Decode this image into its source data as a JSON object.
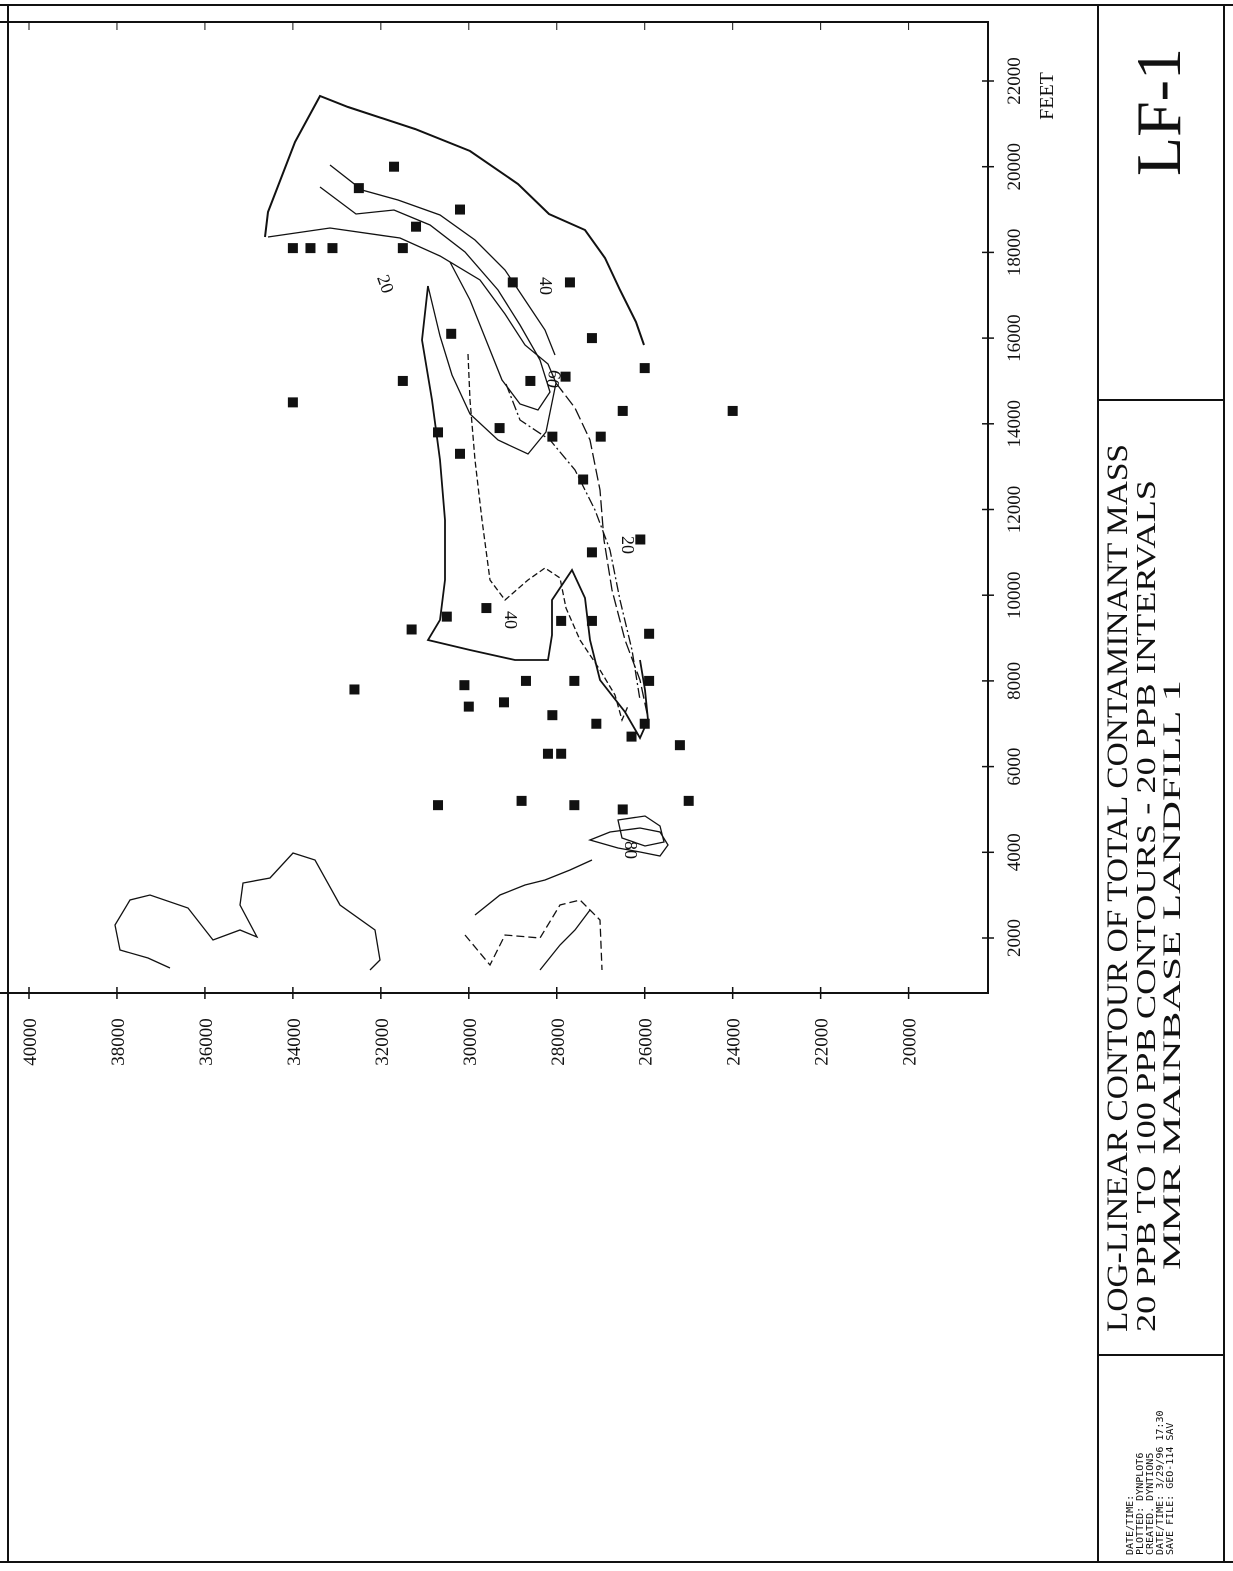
{
  "title_block": {
    "sheet_id": "LF-1",
    "title_line1": "LOG-LINEAR CONTOUR OF TOTAL CONTAMINANT MASS",
    "title_line2": "20 PPB TO 100 PPB CONTOURS - 20 PPB INTERVALS",
    "title_line3": "MMR MAINBASE LANDFILL 1",
    "plot_info": [
      "DATE/TIME:",
      "PLOTTED:   DYNPLOT6",
      "CREATED.   DYNTION5",
      "DATE/TIME:  3/29/96  17:30",
      "SAVE FILE:  GEO-114 SAV"
    ]
  },
  "axes": {
    "easting_label": "FEET",
    "easting_ticks": [
      "2000",
      "4000",
      "6000",
      "8000",
      "10000",
      "12000",
      "14000",
      "16000",
      "18000",
      "20000",
      "22000"
    ],
    "northing_ticks": [
      "40000",
      "38000",
      "36000",
      "34000",
      "32000",
      "30000",
      "28000",
      "26000",
      "24000",
      "22000",
      "20000"
    ]
  },
  "contour_labels": [
    "20",
    "40",
    "60",
    "40",
    "20",
    "80"
  ],
  "wells": [
    [
      5100,
      30700
    ],
    [
      5200,
      28800
    ],
    [
      5100,
      27600
    ],
    [
      5000,
      26500
    ],
    [
      5200,
      25000
    ],
    [
      6300,
      28200
    ],
    [
      6300,
      27900
    ],
    [
      6500,
      25200
    ],
    [
      6700,
      26300
    ],
    [
      7400,
      30000
    ],
    [
      7500,
      29200
    ],
    [
      7200,
      28100
    ],
    [
      7000,
      27100
    ],
    [
      7000,
      26000
    ],
    [
      7800,
      32600
    ],
    [
      7900,
      30100
    ],
    [
      8000,
      28700
    ],
    [
      8000,
      27600
    ],
    [
      8000,
      25900
    ],
    [
      9200,
      31300
    ],
    [
      9500,
      30500
    ],
    [
      9700,
      29600
    ],
    [
      9400,
      27900
    ],
    [
      9400,
      27200
    ],
    [
      9100,
      25900
    ],
    [
      11000,
      27200
    ],
    [
      11300,
      26100
    ],
    [
      12700,
      27400
    ],
    [
      13300,
      30200
    ],
    [
      13800,
      30700
    ],
    [
      13900,
      29300
    ],
    [
      13700,
      28100
    ],
    [
      13700,
      27000
    ],
    [
      14300,
      26500
    ],
    [
      14500,
      34000
    ],
    [
      14300,
      24000
    ],
    [
      15000,
      31500
    ],
    [
      15000,
      28600
    ],
    [
      15100,
      27800
    ],
    [
      15300,
      26000
    ],
    [
      16100,
      30400
    ],
    [
      16000,
      27200
    ],
    [
      17300,
      29000
    ],
    [
      17300,
      27700
    ],
    [
      18100,
      34000
    ],
    [
      18100,
      33600
    ],
    [
      18100,
      33100
    ],
    [
      18100,
      31500
    ],
    [
      18600,
      31200
    ],
    [
      19000,
      30200
    ],
    [
      19500,
      32500
    ],
    [
      20000,
      31700
    ]
  ],
  "colors": {
    "ink": "#111111",
    "paper": "#ffffff"
  }
}
